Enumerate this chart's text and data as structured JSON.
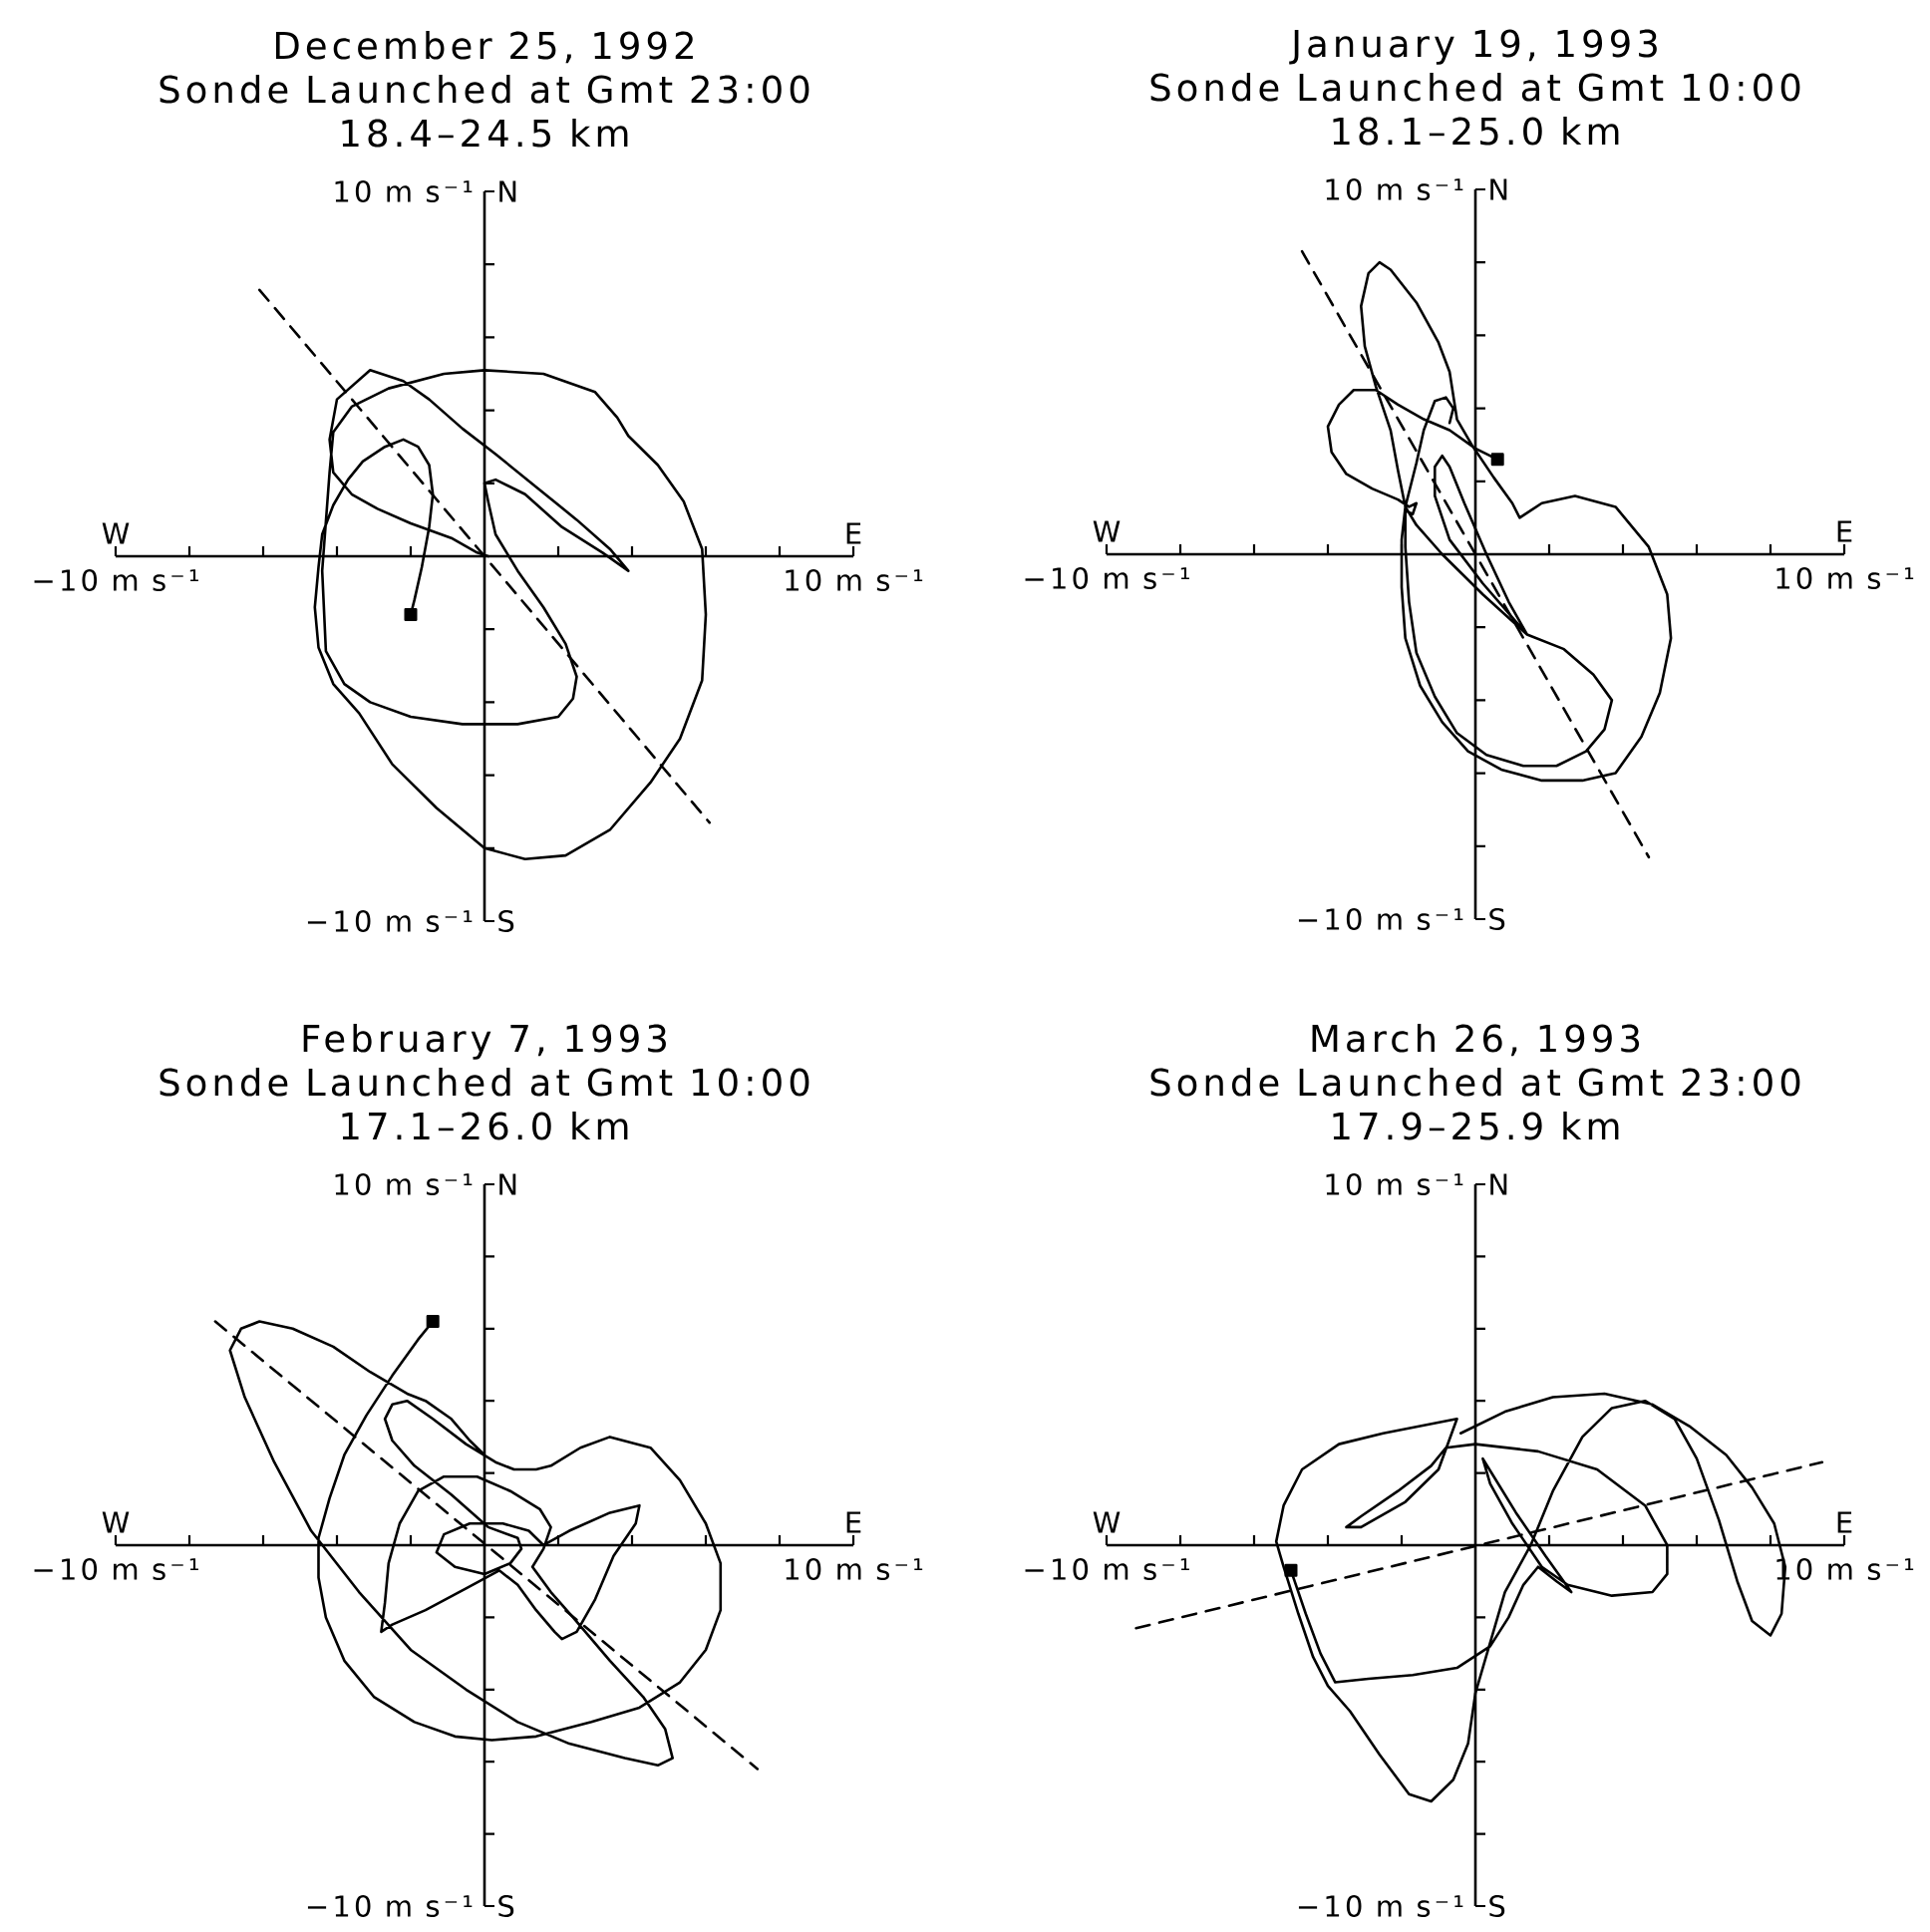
{
  "chart_data": [
    {
      "type": "line",
      "title": "December 25, 1992",
      "subtitle": "Sonde Launched at Gmt 23:00",
      "annotations": [
        "18.4–24.5 km",
        "W",
        "E",
        "N",
        "S"
      ],
      "xlim": [
        -10,
        10
      ],
      "ylim": [
        -10,
        10
      ],
      "xticks": [
        {
          "value": -10,
          "label": "−10 m s⁻¹"
        },
        {
          "value": -8,
          "label": null
        },
        {
          "value": -6,
          "label": null
        },
        {
          "value": -4,
          "label": null
        },
        {
          "value": -2,
          "label": null
        },
        {
          "value": 2,
          "label": null
        },
        {
          "value": 4,
          "label": null
        },
        {
          "value": 6,
          "label": null
        },
        {
          "value": 8,
          "label": null
        },
        {
          "value": 10,
          "label": "10 m s⁻¹"
        }
      ],
      "yticks": [
        {
          "value": -10,
          "label": "−10 m s⁻¹"
        },
        {
          "value": -8,
          "label": null
        },
        {
          "value": -6,
          "label": null
        },
        {
          "value": -4,
          "label": null
        },
        {
          "value": -2,
          "label": null
        },
        {
          "value": 2,
          "label": null
        },
        {
          "value": 4,
          "label": null
        },
        {
          "value": 6,
          "label": null
        },
        {
          "value": 8,
          "label": null
        },
        {
          "value": 10,
          "label": "10 m s⁻¹"
        }
      ],
      "series": [
        {
          "color": "#000000",
          "x": [
            -2.0,
            -1.9,
            -1.7,
            -1.5,
            -1.4,
            -1.5,
            -1.8,
            -2.2,
            -2.7,
            -3.3,
            -3.7,
            -4.1,
            -4.4,
            -4.5,
            -4.6,
            -4.5,
            -4.1,
            -3.4,
            -2.5,
            -1.3,
            0.0,
            1.1,
            2.2,
            3.4,
            4.5,
            5.3,
            5.9,
            6.0,
            5.9,
            5.4,
            4.7,
            3.9,
            3.6,
            3.0,
            1.6,
            0.0,
            -1.1,
            -2.6,
            -3.6,
            -4.1,
            -4.2,
            -4.4,
            -4.3,
            -3.8,
            -3.1,
            -2.0,
            -0.6,
            0.9,
            2.0,
            2.4,
            2.5,
            2.2,
            1.6,
            0.9,
            0.3,
            0.1,
            0.0,
            0.3,
            1.1,
            2.1,
            3.2,
            3.9,
            3.4,
            2.5,
            1.4,
            0.3,
            -0.6,
            -1.5,
            -2.2,
            -3.1,
            -4.0,
            -4.2,
            -4.1,
            -3.6,
            -2.9,
            -2.0,
            -0.9,
            -0.2,
            0.1
          ],
          "values": [
            -1.6,
            -1.2,
            -0.3,
            0.8,
            1.7,
            2.5,
            3.0,
            3.2,
            3.0,
            2.6,
            2.1,
            1.4,
            0.6,
            -0.3,
            -1.4,
            -2.5,
            -3.5,
            -4.3,
            -5.7,
            -6.9,
            -8.0,
            -8.3,
            -8.2,
            -7.5,
            -6.2,
            -5.0,
            -3.4,
            -1.6,
            0.2,
            1.5,
            2.5,
            3.3,
            3.8,
            4.5,
            5.0,
            5.1,
            5.0,
            4.6,
            4.1,
            3.4,
            2.3,
            -0.4,
            -2.6,
            -3.5,
            -4.0,
            -4.4,
            -4.6,
            -4.6,
            -4.4,
            -3.9,
            -3.3,
            -2.4,
            -1.4,
            -0.4,
            0.6,
            1.5,
            2.0,
            2.1,
            1.7,
            0.8,
            0.1,
            -0.4,
            0.2,
            1.0,
            1.9,
            2.8,
            3.5,
            4.3,
            4.8,
            5.1,
            4.3,
            3.2,
            2.3,
            1.7,
            1.3,
            0.9,
            0.5,
            0.1,
            0.0
          ]
        },
        {
          "color": "#000000",
          "line_style": "dashed",
          "x": [
            -6.1,
            6.1
          ],
          "values": [
            7.3,
            -7.3
          ]
        },
        {
          "type": "scatter",
          "marker": "square",
          "color": "#000000",
          "x": [
            -2.0
          ],
          "values": [
            -1.6
          ]
        }
      ]
    },
    {
      "type": "line",
      "title": "January 19, 1993",
      "subtitle": "Sonde Launched at Gmt 10:00",
      "annotations": [
        "18.1–25.0 km",
        "W",
        "E",
        "N",
        "S"
      ],
      "xlim": [
        -10,
        10
      ],
      "ylim": [
        -10,
        10
      ],
      "xticks": [
        {
          "value": -10,
          "label": "−10 m s⁻¹"
        },
        {
          "value": -8,
          "label": null
        },
        {
          "value": -6,
          "label": null
        },
        {
          "value": -4,
          "label": null
        },
        {
          "value": -2,
          "label": null
        },
        {
          "value": 2,
          "label": null
        },
        {
          "value": 4,
          "label": null
        },
        {
          "value": 6,
          "label": null
        },
        {
          "value": 8,
          "label": null
        },
        {
          "value": 10,
          "label": "10 m s⁻¹"
        }
      ],
      "yticks": [
        {
          "value": -10,
          "label": "−10 m s⁻¹"
        },
        {
          "value": -8,
          "label": null
        },
        {
          "value": -6,
          "label": null
        },
        {
          "value": -4,
          "label": null
        },
        {
          "value": -2,
          "label": null
        },
        {
          "value": 2,
          "label": null
        },
        {
          "value": 4,
          "label": null
        },
        {
          "value": 6,
          "label": null
        },
        {
          "value": 8,
          "label": null
        },
        {
          "value": 10,
          "label": "10 m s⁻¹"
        }
      ],
      "series": [
        {
          "color": "#000000",
          "x": [
            0.6,
            0.0,
            -0.7,
            -1.4,
            -2.1,
            -2.7,
            -3.3,
            -3.7,
            -4.0,
            -3.9,
            -3.5,
            -2.8,
            -2.1,
            -1.8,
            -1.6,
            -1.7,
            -1.9,
            -1.9,
            -1.8,
            -1.6,
            -1.1,
            -0.5,
            0.3,
            1.3,
            2.2,
            3.0,
            3.5,
            3.7,
            3.2,
            2.4,
            1.4,
            0.9,
            0.3,
            -0.3,
            -0.7,
            -0.9,
            -1.1,
            -1.1,
            -0.7,
            0.2,
            1.4,
            0.2,
            -0.9,
            -1.6,
            -1.9,
            -2.1,
            -2.3,
            -2.7,
            -3.0,
            -3.1,
            -2.9,
            -2.6,
            -2.3,
            -1.6,
            -1.0,
            -0.7,
            -0.5,
            -0.1,
            0.5,
            1.0,
            1.2,
            1.8,
            2.7,
            3.8,
            4.7,
            5.2,
            5.3,
            5.0,
            4.5,
            3.8,
            2.9,
            1.8,
            0.7,
            -0.2,
            -0.9,
            -1.5,
            -1.9,
            -2.0,
            -2.0,
            -1.9,
            -1.6,
            -1.4,
            -1.1,
            -0.8,
            -0.6,
            -0.7
          ],
          "values": [
            2.6,
            2.9,
            3.4,
            3.7,
            4.1,
            4.5,
            4.5,
            4.1,
            3.5,
            2.8,
            2.2,
            1.8,
            1.5,
            1.3,
            1.4,
            1.1,
            1.2,
            0.2,
            -1.3,
            -2.7,
            -3.9,
            -4.9,
            -5.5,
            -5.8,
            -5.8,
            -5.4,
            -4.8,
            -4.0,
            -3.3,
            -2.6,
            -2.2,
            -1.3,
            0.0,
            1.4,
            2.4,
            2.7,
            2.4,
            1.6,
            0.4,
            -0.8,
            -2.2,
            -1.1,
            0.0,
            0.8,
            1.3,
            2.3,
            3.4,
            4.6,
            5.7,
            6.8,
            7.7,
            8.0,
            7.8,
            6.9,
            5.8,
            5.0,
            3.7,
            3.0,
            2.1,
            1.4,
            1.0,
            1.4,
            1.6,
            1.3,
            0.2,
            -1.1,
            -2.3,
            -3.8,
            -5.0,
            -6.0,
            -6.2,
            -6.2,
            -5.9,
            -5.4,
            -4.6,
            -3.6,
            -2.3,
            -0.9,
            0.4,
            1.3,
            2.5,
            3.4,
            4.2,
            4.3,
            4.0,
            3.6
          ]
        },
        {
          "color": "#000000",
          "line_style": "dashed",
          "x": [
            -4.7,
            4.7
          ],
          "values": [
            8.3,
            -8.3
          ]
        },
        {
          "type": "scatter",
          "marker": "square",
          "color": "#000000",
          "x": [
            0.6
          ],
          "values": [
            2.6
          ]
        }
      ]
    },
    {
      "type": "line",
      "title": "February 7, 1993",
      "subtitle": "Sonde Launched at Gmt 10:00",
      "annotations": [
        "17.1–26.0 km",
        "W",
        "E",
        "N",
        "S"
      ],
      "xlim": [
        -10,
        10
      ],
      "ylim": [
        -10,
        10
      ],
      "xticks": [
        {
          "value": -10,
          "label": "−10 m s⁻¹"
        },
        {
          "value": -8,
          "label": null
        },
        {
          "value": -6,
          "label": null
        },
        {
          "value": -4,
          "label": null
        },
        {
          "value": -2,
          "label": null
        },
        {
          "value": 2,
          "label": null
        },
        {
          "value": 4,
          "label": null
        },
        {
          "value": 6,
          "label": null
        },
        {
          "value": 8,
          "label": null
        },
        {
          "value": 10,
          "label": "10 m s⁻¹"
        }
      ],
      "yticks": [
        {
          "value": -10,
          "label": "−10 m s⁻¹"
        },
        {
          "value": -8,
          "label": null
        },
        {
          "value": -6,
          "label": null
        },
        {
          "value": -4,
          "label": null
        },
        {
          "value": -2,
          "label": null
        },
        {
          "value": 2,
          "label": null
        },
        {
          "value": 4,
          "label": null
        },
        {
          "value": 6,
          "label": null
        },
        {
          "value": 8,
          "label": null
        },
        {
          "value": 10,
          "label": "10 m s⁻¹"
        }
      ],
      "series": [
        {
          "color": "#000000",
          "x": [
            -1.4,
            -1.8,
            -2.5,
            -3.2,
            -3.8,
            -4.2,
            -4.5,
            -4.5,
            -4.3,
            -3.8,
            -3.0,
            -1.9,
            -0.8,
            0.2,
            1.4,
            2.9,
            4.2,
            5.3,
            6.0,
            6.4,
            6.4,
            6.0,
            5.3,
            4.5,
            3.4,
            2.6,
            1.8,
            1.4,
            0.8,
            0.3,
            -0.5,
            -1.4,
            -2.1,
            -2.5,
            -2.7,
            -2.5,
            -1.9,
            -0.9,
            0.1,
            0.9,
            1.0,
            0.7,
            0.0,
            -0.8,
            -1.3,
            -1.1,
            -0.4,
            0.5,
            1.2,
            1.6,
            2.3,
            3.4,
            4.2,
            4.1,
            3.5,
            3.0,
            2.5,
            2.1,
            1.9,
            1.4,
            0.9,
            0.4,
            -0.5,
            -1.6,
            -2.5,
            -2.8,
            -2.7,
            -2.6,
            -2.3,
            -1.8,
            -1.1,
            -0.2,
            0.7,
            1.5,
            1.8,
            1.6,
            1.3,
            1.8,
            2.4,
            3.4,
            4.3,
            4.9,
            5.1,
            4.7,
            3.8,
            2.3,
            0.9,
            -0.5,
            -2.0,
            -3.4,
            -4.7,
            -5.7,
            -6.5,
            -6.9,
            -6.6,
            -6.1,
            -5.2,
            -4.1,
            -3.1,
            -2.1,
            -1.6,
            -0.9,
            -0.4,
            0.0
          ],
          "values": [
            6.2,
            5.7,
            4.7,
            3.6,
            2.5,
            1.3,
            0.2,
            -0.9,
            -2.0,
            -3.2,
            -4.2,
            -4.9,
            -5.3,
            -5.4,
            -5.3,
            -4.9,
            -4.5,
            -3.8,
            -2.9,
            -1.8,
            -0.5,
            0.6,
            1.8,
            2.7,
            3.0,
            2.7,
            2.2,
            2.1,
            2.1,
            2.3,
            2.8,
            3.5,
            4.0,
            3.9,
            3.5,
            2.9,
            2.2,
            1.4,
            0.5,
            0.2,
            -0.1,
            -0.5,
            -0.8,
            -0.6,
            -0.2,
            0.3,
            0.6,
            0.6,
            0.4,
            0.0,
            0.4,
            0.9,
            1.1,
            0.6,
            -0.3,
            -1.5,
            -2.4,
            -2.6,
            -2.4,
            -1.8,
            -1.1,
            -0.7,
            -1.2,
            -1.8,
            -2.2,
            -2.4,
            -1.6,
            -0.5,
            0.6,
            1.5,
            1.9,
            1.9,
            1.5,
            1.0,
            0.5,
            -0.1,
            -0.6,
            -1.3,
            -2.0,
            -3.2,
            -4.2,
            -5.1,
            -5.9,
            -6.1,
            -5.9,
            -5.5,
            -4.9,
            -4.0,
            -2.9,
            -1.3,
            0.4,
            2.3,
            4.1,
            5.4,
            6.0,
            6.2,
            6.0,
            5.5,
            4.8,
            4.2,
            4.0,
            3.5,
            2.9,
            2.5
          ]
        },
        {
          "color": "#000000",
          "line_style": "dashed",
          "x": [
            -7.3,
            7.4
          ],
          "values": [
            6.2,
            -6.2
          ]
        },
        {
          "type": "scatter",
          "marker": "square",
          "color": "#000000",
          "x": [
            -1.4
          ],
          "values": [
            6.2
          ]
        }
      ]
    },
    {
      "type": "line",
      "title": "March 26, 1993",
      "subtitle": "Sonde Launched at Gmt 23:00",
      "annotations": [
        "17.9–25.9 km",
        "W",
        "E",
        "N",
        "S"
      ],
      "xlim": [
        -10,
        10
      ],
      "ylim": [
        -10,
        10
      ],
      "xticks": [
        {
          "value": -10,
          "label": "−10 m s⁻¹"
        },
        {
          "value": -8,
          "label": null
        },
        {
          "value": -6,
          "label": null
        },
        {
          "value": -4,
          "label": null
        },
        {
          "value": -2,
          "label": null
        },
        {
          "value": 2,
          "label": null
        },
        {
          "value": 4,
          "label": null
        },
        {
          "value": 6,
          "label": null
        },
        {
          "value": 8,
          "label": null
        },
        {
          "value": 10,
          "label": "10 m s⁻¹"
        }
      ],
      "yticks": [
        {
          "value": -10,
          "label": "−10 m s⁻¹"
        },
        {
          "value": -8,
          "label": null
        },
        {
          "value": -6,
          "label": null
        },
        {
          "value": -4,
          "label": null
        },
        {
          "value": -2,
          "label": null
        },
        {
          "value": 2,
          "label": null
        },
        {
          "value": 4,
          "label": null
        },
        {
          "value": 6,
          "label": null
        },
        {
          "value": 8,
          "label": null
        },
        {
          "value": 10,
          "label": "10 m s⁻¹"
        }
      ],
      "series": [
        {
          "color": "#000000",
          "x": [
            -5.0,
            -4.6,
            -4.2,
            -3.8,
            -2.9,
            -1.7,
            -0.5,
            0.4,
            0.9,
            1.3,
            1.7,
            2.2,
            2.6,
            1.9,
            1.1,
            0.5,
            0.2,
            0.4,
            1.0,
            1.8,
            2.5,
            3.7,
            4.8,
            5.2,
            5.2,
            4.6,
            3.3,
            1.7,
            0.0,
            -0.8,
            -1.2,
            -2.1,
            -3.1,
            -3.5,
            -3.1,
            -1.9,
            -1.0,
            -0.5,
            -1.5,
            -2.5,
            -3.7,
            -4.7,
            -5.2,
            -5.4,
            -5.2,
            -4.8,
            -4.4,
            -4.0,
            -3.4,
            -2.6,
            -1.8,
            -1.2,
            -0.6,
            -0.2,
            0.0,
            0.8,
            1.5,
            2.1,
            2.9,
            3.7,
            4.6,
            5.4,
            6.0,
            6.6,
            7.1,
            7.5,
            8.0,
            8.3,
            8.4,
            8.1,
            7.5,
            6.8,
            5.8,
            4.8,
            3.5,
            2.1,
            0.8,
            -0.4
          ],
          "values": [
            -0.7,
            -1.9,
            -3.0,
            -3.8,
            -3.7,
            -3.6,
            -3.4,
            -2.8,
            -2.0,
            -1.1,
            -0.6,
            -1.0,
            -1.3,
            -0.3,
            0.9,
            1.9,
            2.4,
            1.7,
            0.6,
            -0.6,
            -1.1,
            -1.4,
            -1.3,
            -0.8,
            0.0,
            1.1,
            2.1,
            2.6,
            2.8,
            2.7,
            2.2,
            1.5,
            0.8,
            0.5,
            0.5,
            1.2,
            2.1,
            3.5,
            3.3,
            3.1,
            2.8,
            2.1,
            1.1,
            0.1,
            -0.6,
            -1.9,
            -3.1,
            -3.9,
            -4.6,
            -5.8,
            -6.9,
            -7.1,
            -6.5,
            -5.5,
            -4.1,
            -1.3,
            0.0,
            1.5,
            3.0,
            3.8,
            4.0,
            3.5,
            2.4,
            0.7,
            -1.0,
            -2.1,
            -2.5,
            -1.9,
            -0.6,
            0.6,
            1.6,
            2.5,
            3.3,
            3.9,
            4.2,
            4.1,
            3.7,
            3.1
          ]
        },
        {
          "color": "#000000",
          "line_style": "dashed",
          "x": [
            -9.2,
            9.4
          ],
          "values": [
            -2.3,
            2.3
          ]
        },
        {
          "type": "scatter",
          "marker": "square",
          "color": "#000000",
          "x": [
            -5.0
          ],
          "values": [
            -0.7
          ]
        }
      ]
    }
  ]
}
